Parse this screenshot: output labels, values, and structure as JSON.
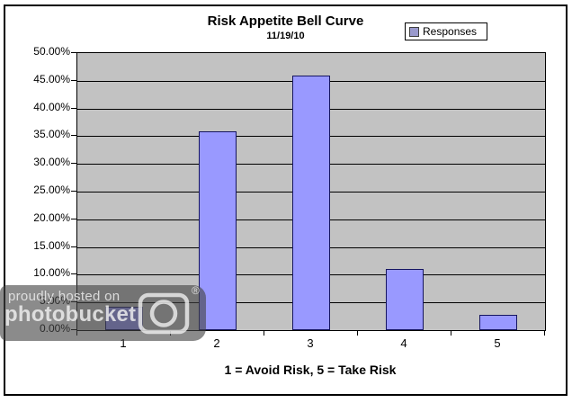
{
  "chart_data": {
    "type": "bar",
    "title": "Risk Appetite Bell Curve",
    "subtitle": "11/19/10",
    "categories": [
      "1",
      "2",
      "3",
      "4",
      "5"
    ],
    "series": [
      {
        "name": "Responses",
        "values": [
          4.3,
          35.8,
          46.0,
          11.0,
          2.7
        ]
      }
    ],
    "xlabel": "1 = Avoid Risk, 5 = Take Risk",
    "ylabel": "",
    "ylim": [
      0,
      50
    ],
    "ytick_step": 5,
    "ytick_labels": [
      "50.00%",
      "45.00%",
      "40.00%",
      "35.00%",
      "30.00%",
      "25.00%",
      "20.00%",
      "15.00%",
      "10.00%",
      "5.00%",
      "0.00%"
    ],
    "grid": true,
    "legend": {
      "label": "Responses",
      "position": "top-right"
    },
    "colors": {
      "bar_fill": "#9999FF",
      "bar_border": "#151560",
      "plot_bg": "#C2C2C2",
      "gridline": "#000000",
      "legend_marker": "#9999CC"
    }
  },
  "watermark": {
    "line1": "proudly hosted on",
    "line2": "photobucket",
    "registered": "®"
  }
}
